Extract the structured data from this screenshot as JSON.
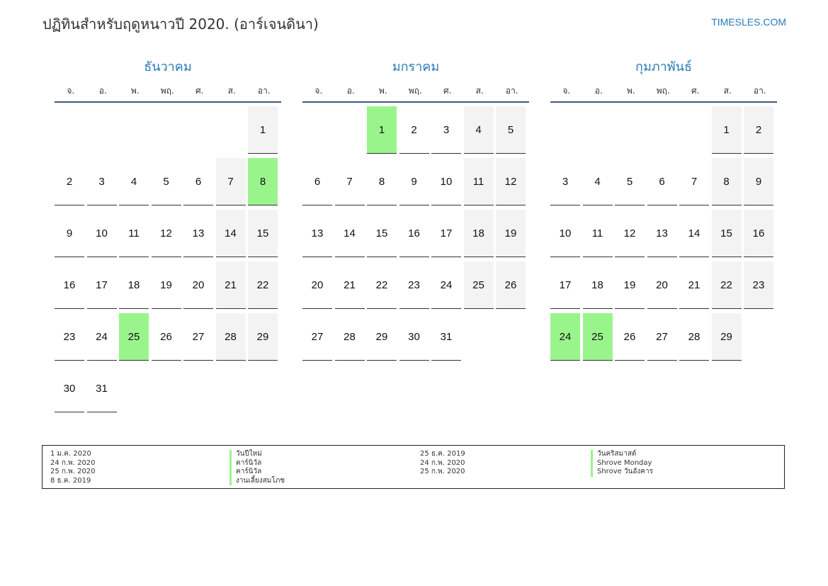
{
  "header": {
    "title": "ปฏิทินสำหรับฤดูหนาวปี 2020. (อาร์เจนดินา)",
    "site_link": "TIMESLES.COM"
  },
  "colors": {
    "accent": "#2a7ab8",
    "holiday": "#99f58b",
    "weekend": "#f3f3f3",
    "header_rule": "#3b5a7a"
  },
  "weekdays": [
    "จ.",
    "อ.",
    "พ.",
    "พฤ.",
    "ศ.",
    "ส.",
    "อา."
  ],
  "months": [
    {
      "name": "ธันวาคม",
      "start_weekday": 6,
      "days": 31,
      "holidays": [
        8,
        25
      ]
    },
    {
      "name": "มกราคม",
      "start_weekday": 2,
      "days": 31,
      "holidays": [
        1
      ]
    },
    {
      "name": "กุมภาพันธ์",
      "start_weekday": 5,
      "days": 29,
      "holidays": [
        24,
        25
      ]
    }
  ],
  "legend": {
    "left": [
      {
        "date": "1 ม.ค. 2020",
        "name": "วันปีใหม่"
      },
      {
        "date": "24 ก.พ. 2020",
        "name": "คาร์นิวัล"
      },
      {
        "date": "25 ก.พ. 2020",
        "name": "คาร์นิวัล"
      },
      {
        "date": "8 ธ.ค. 2019",
        "name": "งานเลี้ยงสมโภช"
      }
    ],
    "right": [
      {
        "date": "25 ธ.ค. 2019",
        "name": "วันคริสมาสต์"
      },
      {
        "date": "24 ก.พ. 2020",
        "name": "Shrove Monday"
      },
      {
        "date": "25 ก.พ. 2020",
        "name": "Shrove วันอังคาร"
      }
    ]
  }
}
